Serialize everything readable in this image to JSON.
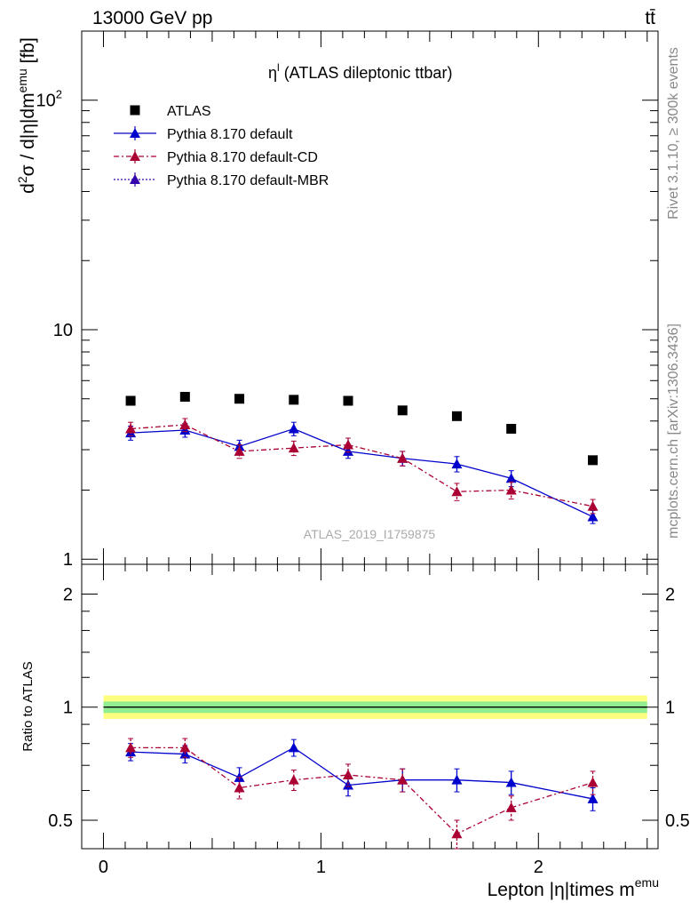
{
  "header": {
    "left": "13000 GeV pp",
    "right": "tt̄"
  },
  "side_labels": {
    "rivet": "Rivet 3.1.10, ≥ 300k events",
    "mcplots": "mcplots.cern.ch [arXiv:1306.3436]"
  },
  "chart_data": [
    {
      "type": "scatter",
      "title": "η",
      "title_superscript": "l",
      "title_rest": " (ATLAS dileptonic ttbar)",
      "watermark": "ATLAS_2019_I1759875",
      "ylabel": {
        "main": "d",
        "sup1": "2",
        "mid": "σ / d|η|dm",
        "sup2": "emu",
        "end": " [fb]"
      },
      "yscale": "log",
      "ylim": [
        0.95,
        200
      ],
      "xlim": [
        -0.1,
        2.55
      ],
      "y_ticks": [
        {
          "v": 1,
          "label": "1"
        },
        {
          "v": 10,
          "label": "10"
        },
        {
          "v": 100,
          "label": "10",
          "sup": "2"
        }
      ],
      "legend_position": "top-left",
      "x": [
        0.125,
        0.375,
        0.625,
        0.875,
        1.125,
        1.375,
        1.625,
        1.875,
        2.25
      ],
      "series": [
        {
          "name": "ATLAS",
          "marker": "square",
          "color": "#000000",
          "values": [
            4.9,
            5.1,
            5.0,
            4.95,
            4.9,
            4.45,
            4.2,
            3.7,
            2.7
          ]
        },
        {
          "name": "Pythia 8.170 default",
          "marker": "triangle",
          "color": "#0000cc",
          "line": "solid",
          "values": [
            3.55,
            3.65,
            3.1,
            3.7,
            2.95,
            2.75,
            2.6,
            2.25,
            1.53
          ],
          "err": [
            0.25,
            0.25,
            0.2,
            0.25,
            0.2,
            0.2,
            0.2,
            0.18,
            0.1
          ]
        },
        {
          "name": "Pythia 8.170 default-CD",
          "marker": "triangle",
          "color": "#aa0033",
          "line": "dashdot",
          "values": [
            3.7,
            3.85,
            2.95,
            3.05,
            3.15,
            2.75,
            1.97,
            2.0,
            1.7
          ],
          "err": [
            0.25,
            0.25,
            0.2,
            0.22,
            0.22,
            0.2,
            0.17,
            0.17,
            0.12
          ]
        },
        {
          "name": "Pythia 8.170 default-MBR",
          "marker": "triangle",
          "color": "#3300aa",
          "line": "dotted",
          "values": [],
          "err": []
        }
      ]
    },
    {
      "type": "scatter",
      "ylabel": "Ratio to ATLAS",
      "xlabel": "Lepton |η|times m",
      "xlabel_sup": "emu",
      "yscale": "log",
      "ylim": [
        0.42,
        2.4
      ],
      "xlim": [
        -0.1,
        2.55
      ],
      "y_ticks": [
        {
          "v": 0.5,
          "label": "0.5"
        },
        {
          "v": 1,
          "label": "1"
        },
        {
          "v": 2,
          "label": "2"
        }
      ],
      "x_ticks": [
        {
          "v": 0,
          "label": "0"
        },
        {
          "v": 1,
          "label": "1"
        },
        {
          "v": 2,
          "label": "2"
        }
      ],
      "band": {
        "inner": [
          0.965,
          1.035
        ],
        "outer": [
          0.93,
          1.075
        ],
        "inner_color": "#90ee90",
        "outer_color": "#ffff80"
      },
      "x": [
        0.125,
        0.375,
        0.625,
        0.875,
        1.125,
        1.375,
        1.625,
        1.875,
        2.25
      ],
      "series": [
        {
          "name": "Pythia 8.170 default",
          "color": "#0000cc",
          "line": "solid",
          "values": [
            0.76,
            0.75,
            0.65,
            0.78,
            0.62,
            0.64,
            0.64,
            0.63,
            0.57
          ],
          "err": [
            0.04,
            0.04,
            0.04,
            0.04,
            0.04,
            0.045,
            0.045,
            0.045,
            0.04
          ]
        },
        {
          "name": "Pythia 8.170 default-CD",
          "color": "#aa0033",
          "line": "dashdot",
          "values": [
            0.78,
            0.78,
            0.61,
            0.64,
            0.66,
            0.64,
            0.46,
            0.54,
            0.63
          ],
          "err": [
            0.045,
            0.045,
            0.04,
            0.04,
            0.045,
            0.045,
            0.04,
            0.04,
            0.045
          ]
        }
      ]
    }
  ]
}
